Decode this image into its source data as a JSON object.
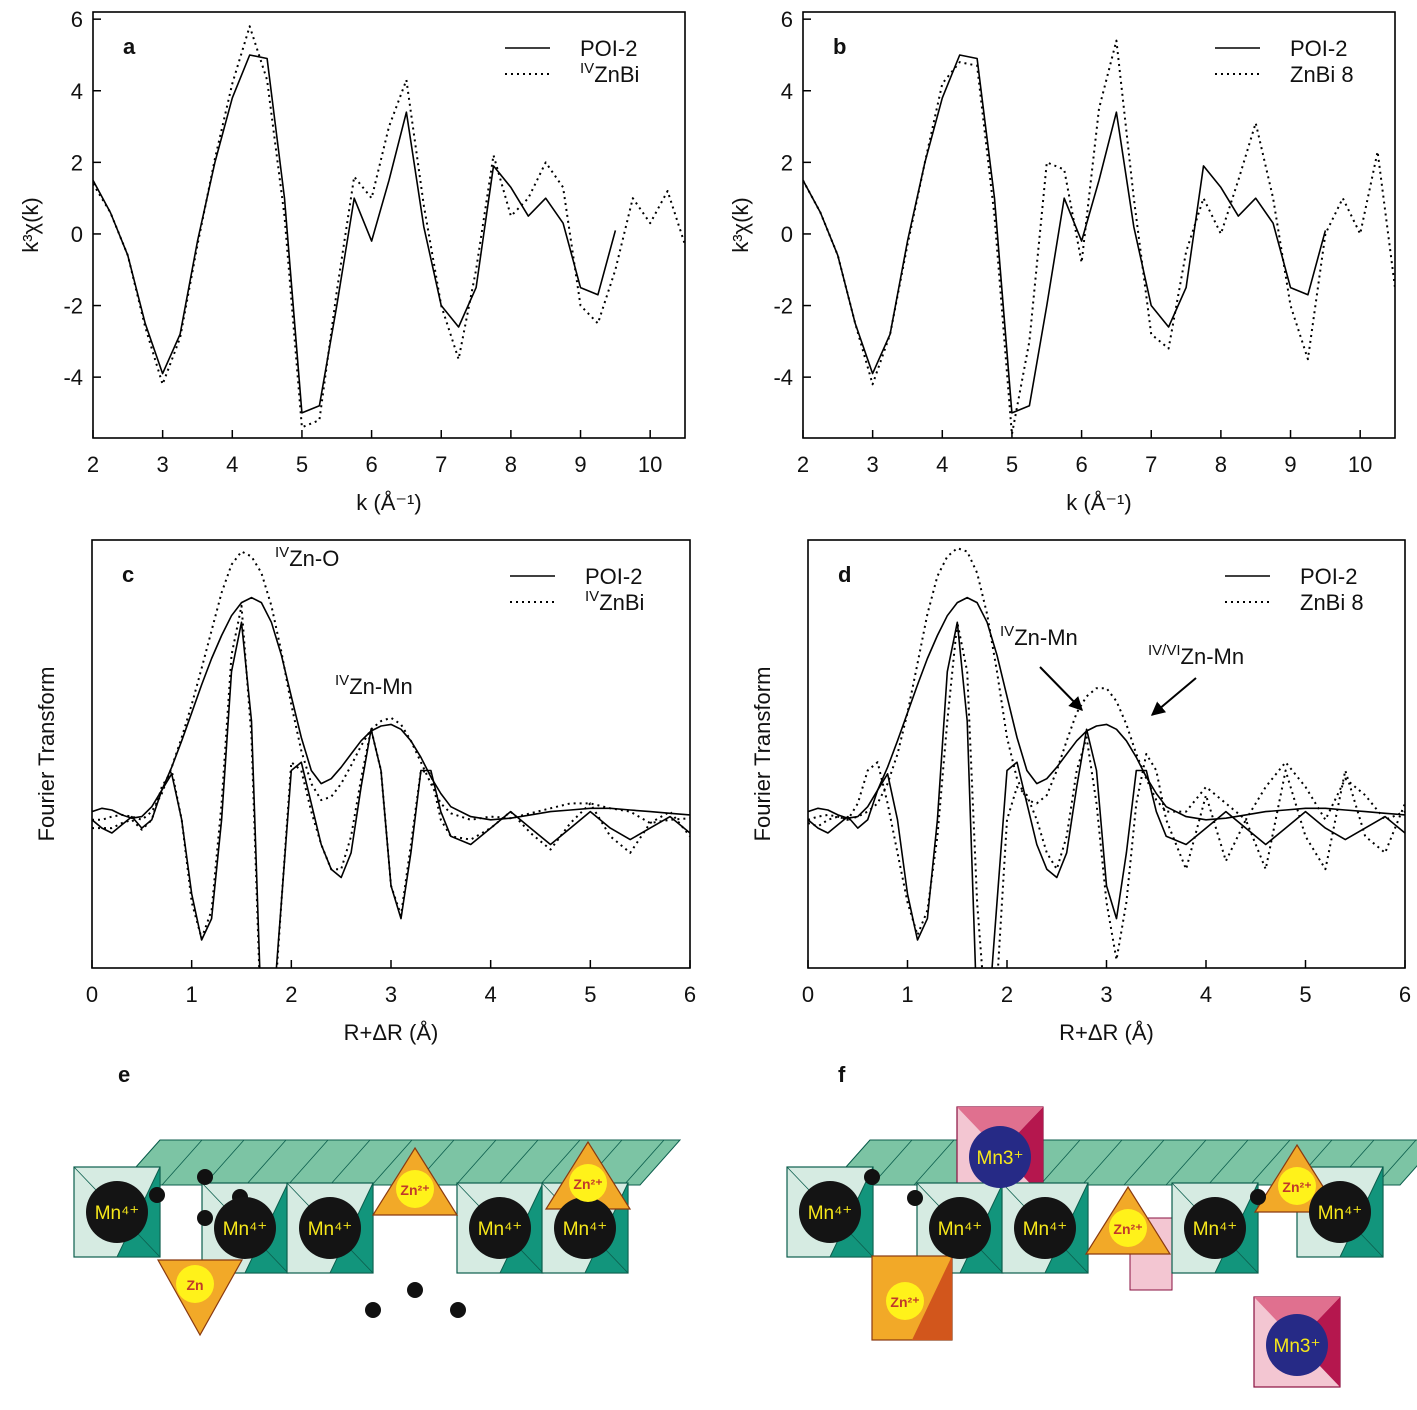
{
  "chart_data": [
    {
      "type": "line",
      "panel": "a",
      "xlabel": "k (Å⁻¹)",
      "ylabel": "k³χ(k)",
      "xlim": [
        2,
        10.5
      ],
      "ylim": [
        -5.7,
        6.2
      ],
      "xticks": [
        2,
        3,
        4,
        5,
        6,
        7,
        8,
        9,
        10
      ],
      "yticks": [
        6,
        4,
        2,
        0,
        -2,
        -4
      ],
      "x": [
        2,
        2.25,
        2.5,
        2.75,
        3,
        3.25,
        3.5,
        3.75,
        4,
        4.25,
        4.5,
        4.75,
        5,
        5.25,
        5.5,
        5.75,
        6,
        6.25,
        6.5,
        6.75,
        7,
        7.25,
        7.5,
        7.75,
        8,
        8.25,
        8.5,
        8.75,
        9,
        9.25,
        9.5,
        9.75,
        10,
        10.25,
        10.5
      ],
      "series": [
        {
          "name": "POI-2",
          "color": "#000000",
          "style": "solid",
          "values": [
            1.5,
            0.6,
            -0.6,
            -2.5,
            -3.9,
            -2.8,
            -0.2,
            2.0,
            3.8,
            5.0,
            4.9,
            1.0,
            -5.0,
            -4.8,
            -2.0,
            1.0,
            -0.2,
            1.5,
            3.4,
            0.2,
            -2.0,
            -2.6,
            -1.5,
            1.9,
            1.3,
            0.5,
            1.0,
            0.3,
            -1.5,
            -1.7,
            0.1,
            null,
            null,
            null,
            null
          ]
        },
        {
          "name": "ZnBi",
          "name_sup": "IV",
          "color": "#000000",
          "style": "dotted",
          "values": [
            1.4,
            0.6,
            -0.6,
            -2.6,
            -4.2,
            -2.9,
            -0.3,
            2.1,
            4.2,
            5.8,
            4.3,
            0.5,
            -5.4,
            -5.2,
            -1.6,
            1.6,
            1.0,
            3.0,
            4.3,
            0.8,
            -2.0,
            -3.5,
            -1.0,
            2.2,
            0.5,
            1.0,
            2.0,
            1.3,
            -2.0,
            -2.5,
            -1.0,
            1.0,
            0.3,
            1.2,
            -0.3
          ]
        }
      ]
    },
    {
      "type": "line",
      "panel": "b",
      "xlabel": "k (Å⁻¹)",
      "ylabel": "k³χ(k)",
      "xlim": [
        2,
        10.5
      ],
      "ylim": [
        -5.7,
        6.2
      ],
      "xticks": [
        2,
        3,
        4,
        5,
        6,
        7,
        8,
        9,
        10
      ],
      "yticks": [
        6,
        4,
        2,
        0,
        -2,
        -4
      ],
      "x": [
        2,
        2.25,
        2.5,
        2.75,
        3,
        3.25,
        3.5,
        3.75,
        4,
        4.25,
        4.5,
        4.75,
        5,
        5.25,
        5.5,
        5.75,
        6,
        6.25,
        6.5,
        6.75,
        7,
        7.25,
        7.5,
        7.75,
        8,
        8.25,
        8.5,
        8.75,
        9,
        9.25,
        9.5,
        9.75,
        10,
        10.25,
        10.5
      ],
      "series": [
        {
          "name": "POI-2",
          "color": "#000000",
          "style": "solid",
          "values": [
            1.5,
            0.6,
            -0.6,
            -2.5,
            -3.9,
            -2.8,
            -0.2,
            2.0,
            3.8,
            5.0,
            4.9,
            1.0,
            -5.0,
            -4.8,
            -2.0,
            1.0,
            -0.2,
            1.5,
            3.4,
            0.2,
            -2.0,
            -2.6,
            -1.5,
            1.9,
            1.3,
            0.5,
            1.0,
            0.3,
            -1.5,
            -1.7,
            0.1,
            null,
            null,
            null,
            null
          ]
        },
        {
          "name": "ZnBi 8",
          "color": "#000000",
          "style": "dotted",
          "values": [
            1.5,
            0.6,
            -0.6,
            -2.5,
            -4.2,
            -2.8,
            -0.3,
            2.0,
            4.2,
            4.8,
            4.7,
            0.5,
            -5.6,
            -3.0,
            2.0,
            1.8,
            -0.8,
            3.5,
            5.4,
            1.0,
            -2.8,
            -3.2,
            -0.5,
            1.0,
            0.0,
            1.5,
            3.1,
            1.0,
            -2.0,
            -3.5,
            0.0,
            1.0,
            0.0,
            2.3,
            -1.5
          ]
        }
      ]
    },
    {
      "type": "line",
      "panel": "c",
      "xlabel": "R+ΔR (Å)",
      "ylabel": "Fourier Transform",
      "xlim": [
        0,
        6
      ],
      "ylim": [
        -0.9,
        1.7
      ],
      "xticks": [
        0,
        1,
        2,
        3,
        4,
        5,
        6
      ],
      "x": [
        0,
        0.1,
        0.2,
        0.3,
        0.4,
        0.5,
        0.6,
        0.7,
        0.8,
        0.9,
        1.0,
        1.1,
        1.2,
        1.3,
        1.4,
        1.5,
        1.6,
        1.7,
        1.8,
        1.9,
        2.0,
        2.1,
        2.2,
        2.3,
        2.4,
        2.5,
        2.6,
        2.7,
        2.8,
        2.9,
        3.0,
        3.1,
        3.2,
        3.3,
        3.4,
        3.5,
        3.6,
        3.8,
        4.0,
        4.2,
        4.4,
        4.6,
        4.8,
        5.0,
        5.2,
        5.4,
        5.6,
        5.8,
        6.0
      ],
      "series": [
        {
          "name": "POI-2",
          "color": "#000000",
          "style": "solid",
          "values": [
            0.05,
            0.07,
            0.06,
            0.03,
            0.01,
            0.02,
            0.08,
            0.18,
            0.32,
            0.48,
            0.65,
            0.82,
            0.98,
            1.12,
            1.24,
            1.32,
            1.35,
            1.32,
            1.2,
            1.0,
            0.75,
            0.5,
            0.3,
            0.22,
            0.25,
            0.32,
            0.4,
            0.48,
            0.54,
            0.57,
            0.58,
            0.55,
            0.48,
            0.38,
            0.26,
            0.16,
            0.08,
            0.02,
            0.0,
            0.01,
            0.03,
            0.05,
            0.06,
            0.07,
            0.07,
            0.06,
            0.05,
            0.04,
            0.03
          ]
        },
        {
          "name": "ZnBi",
          "name_sup": "IV",
          "color": "#000000",
          "style": "dotted",
          "values": [
            0.0,
            0.0,
            0.02,
            0.03,
            0.02,
            0.0,
            0.05,
            0.16,
            0.32,
            0.5,
            0.7,
            0.92,
            1.15,
            1.38,
            1.55,
            1.63,
            1.6,
            1.5,
            1.3,
            1.02,
            0.7,
            0.42,
            0.22,
            0.12,
            0.14,
            0.22,
            0.33,
            0.45,
            0.55,
            0.6,
            0.62,
            0.58,
            0.48,
            0.35,
            0.22,
            0.1,
            0.04,
            0.0,
            0.02,
            0.01,
            0.04,
            0.07,
            0.1,
            0.1,
            0.07,
            0.05,
            -0.02,
            0.0,
            0.01
          ]
        },
        {
          "color": "#000000",
          "style": "solid",
          "values": [
            0.0,
            -0.05,
            -0.08,
            -0.03,
            0.02,
            -0.05,
            0.0,
            0.18,
            0.28,
            0.0,
            -0.45,
            -0.73,
            -0.6,
            0.0,
            0.9,
            1.2,
            0.6,
            -1.2,
            -1.3,
            -0.5,
            0.3,
            0.35,
            0.1,
            -0.15,
            -0.3,
            -0.35,
            -0.2,
            0.2,
            0.55,
            0.3,
            -0.4,
            -0.6,
            -0.2,
            0.3,
            0.3,
            0.05,
            -0.1,
            -0.15,
            -0.05,
            0.05,
            -0.05,
            -0.15,
            -0.05,
            0.05,
            -0.05,
            -0.12,
            -0.05,
            0.02,
            -0.08
          ]
        },
        {
          "color": "#000000",
          "style": "dotted",
          "values": [
            -0.05,
            -0.05,
            -0.05,
            -0.02,
            0.0,
            -0.06,
            0.0,
            0.2,
            0.3,
            0.0,
            -0.5,
            -0.72,
            -0.55,
            0.1,
            1.0,
            1.3,
            0.5,
            -1.3,
            -1.4,
            -0.5,
            0.35,
            0.3,
            0.05,
            -0.15,
            -0.3,
            -0.3,
            -0.1,
            0.25,
            0.55,
            0.3,
            -0.4,
            -0.58,
            -0.15,
            0.3,
            0.28,
            0.0,
            -0.1,
            -0.12,
            -0.05,
            0.05,
            -0.08,
            -0.18,
            -0.02,
            0.1,
            -0.1,
            -0.2,
            -0.02,
            0.05,
            -0.1
          ]
        }
      ],
      "annotations": [
        {
          "sup": "IV",
          "text": "Zn-O"
        },
        {
          "sup": "IV",
          "text": "Zn-Mn"
        }
      ]
    },
    {
      "type": "line",
      "panel": "d",
      "xlabel": "R+ΔR (Å)",
      "ylabel": "Fourier Transform",
      "xlim": [
        0,
        6
      ],
      "ylim": [
        -0.9,
        1.7
      ],
      "xticks": [
        0,
        1,
        2,
        3,
        4,
        5,
        6
      ],
      "x": [
        0,
        0.1,
        0.2,
        0.3,
        0.4,
        0.5,
        0.6,
        0.7,
        0.8,
        0.9,
        1.0,
        1.1,
        1.2,
        1.3,
        1.4,
        1.5,
        1.6,
        1.7,
        1.8,
        1.9,
        2.0,
        2.1,
        2.2,
        2.3,
        2.4,
        2.5,
        2.6,
        2.7,
        2.8,
        2.9,
        3.0,
        3.1,
        3.2,
        3.3,
        3.4,
        3.5,
        3.6,
        3.8,
        4.0,
        4.2,
        4.4,
        4.6,
        4.8,
        5.0,
        5.2,
        5.4,
        5.6,
        5.8,
        6.0
      ],
      "series": [
        {
          "name": "POI-2",
          "color": "#000000",
          "style": "solid",
          "values": [
            0.05,
            0.07,
            0.06,
            0.03,
            0.01,
            0.02,
            0.08,
            0.18,
            0.32,
            0.48,
            0.65,
            0.82,
            0.98,
            1.12,
            1.24,
            1.32,
            1.35,
            1.32,
            1.2,
            1.0,
            0.75,
            0.5,
            0.3,
            0.22,
            0.25,
            0.32,
            0.4,
            0.48,
            0.54,
            0.57,
            0.58,
            0.55,
            0.48,
            0.38,
            0.26,
            0.16,
            0.08,
            0.02,
            0.0,
            0.01,
            0.03,
            0.05,
            0.06,
            0.07,
            0.07,
            0.06,
            0.05,
            0.04,
            0.03
          ]
        },
        {
          "name": "ZnBi 8",
          "color": "#000000",
          "style": "dotted",
          "values": [
            0.0,
            0.02,
            0.03,
            0.02,
            0.0,
            0.02,
            0.05,
            0.1,
            0.22,
            0.4,
            0.65,
            0.95,
            1.25,
            1.48,
            1.6,
            1.65,
            1.63,
            1.5,
            1.25,
            0.9,
            0.5,
            0.25,
            0.12,
            0.1,
            0.15,
            0.3,
            0.48,
            0.65,
            0.75,
            0.8,
            0.8,
            0.72,
            0.58,
            0.4,
            0.25,
            0.12,
            0.05,
            0.05,
            0.2,
            0.1,
            0.0,
            0.2,
            0.35,
            0.2,
            0.0,
            0.25,
            0.15,
            0.0,
            0.05
          ]
        },
        {
          "color": "#000000",
          "style": "solid",
          "values": [
            0.0,
            -0.05,
            -0.08,
            -0.03,
            0.02,
            -0.05,
            0.0,
            0.18,
            0.28,
            0.0,
            -0.45,
            -0.73,
            -0.6,
            0.0,
            0.9,
            1.2,
            0.6,
            -1.2,
            -1.3,
            -0.5,
            0.3,
            0.35,
            0.1,
            -0.15,
            -0.3,
            -0.35,
            -0.2,
            0.2,
            0.55,
            0.3,
            -0.4,
            -0.6,
            -0.2,
            0.3,
            0.3,
            0.05,
            -0.1,
            -0.15,
            -0.05,
            0.05,
            -0.05,
            -0.15,
            -0.05,
            0.05,
            -0.05,
            -0.12,
            -0.05,
            0.02,
            -0.08
          ]
        },
        {
          "color": "#000000",
          "style": "dotted",
          "values": [
            -0.02,
            -0.04,
            0.0,
            0.02,
            0.0,
            0.1,
            0.3,
            0.35,
            0.1,
            -0.2,
            -0.5,
            -0.7,
            -0.55,
            -0.1,
            0.6,
            1.2,
            0.9,
            -0.5,
            -1.3,
            -1.0,
            0.0,
            0.2,
            0.15,
            0.0,
            -0.2,
            -0.3,
            -0.1,
            0.3,
            0.5,
            0.1,
            -0.5,
            -0.85,
            -0.5,
            0.1,
            0.4,
            0.3,
            0.0,
            -0.3,
            0.15,
            -0.25,
            0.0,
            -0.3,
            0.3,
            -0.1,
            -0.3,
            0.3,
            -0.1,
            -0.2,
            0.1
          ]
        }
      ],
      "annotations": [
        {
          "sup": "IV",
          "text": "Zn-Mn"
        },
        {
          "sup": "IV/VI",
          "text": "Zn-Mn"
        }
      ]
    }
  ],
  "diagrams": [
    {
      "panel": "e",
      "labels": [
        "Mn⁴⁺",
        "Mn⁴⁺",
        "Mn⁴⁺",
        "Zn²⁺",
        "Mn⁴⁺",
        "Mn⁴⁺",
        "Zn²⁺",
        "Zn"
      ]
    },
    {
      "panel": "f",
      "labels": [
        "Mn3⁺",
        "Mn⁴⁺",
        "Mn⁴⁺",
        "Mn⁴⁺",
        "Zn²⁺",
        "Mn⁴⁺",
        "Zn²⁺",
        "Mn⁴⁺",
        "Zn²⁺",
        "Mn3⁺"
      ]
    }
  ]
}
